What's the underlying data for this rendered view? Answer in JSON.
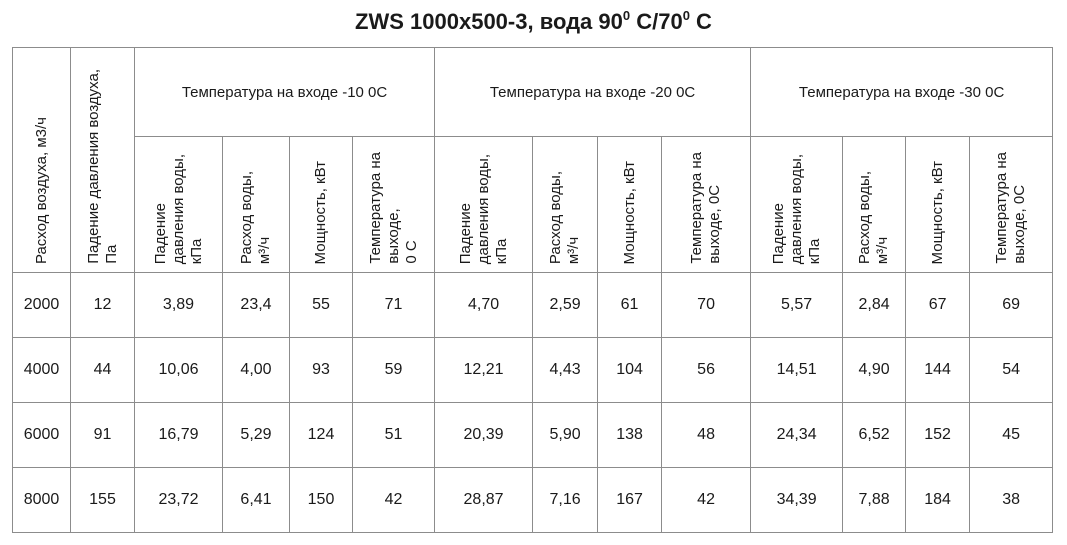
{
  "title": [
    "ZWS 1000x500-3, вода 90",
    "0",
    " C/70",
    "0",
    " C"
  ],
  "header": {
    "first_columns": [
      {
        "lines": [
          "Расход воздуха, м3/ч"
        ]
      },
      {
        "lines": [
          "Падение давления воздуха,",
          "Па"
        ]
      }
    ],
    "groups": [
      {
        "title": "Температура на входе -10 0С",
        "columns": [
          {
            "lines": [
              "Падение",
              "давления воды,",
              "кПа"
            ]
          },
          {
            "lines": [
              "Расход воды,",
              "м³/ч"
            ]
          },
          {
            "lines": [
              "Мощность, кВт"
            ]
          },
          {
            "lines": [
              "Температура на",
              "выходе,",
              "0 С"
            ]
          }
        ]
      },
      {
        "title": "Температура на входе -20 0С",
        "columns": [
          {
            "lines": [
              "Падение",
              "давления воды,",
              "кПа"
            ]
          },
          {
            "lines": [
              "Расход воды,",
              "м³/ч"
            ]
          },
          {
            "lines": [
              "Мощность, кВт"
            ]
          },
          {
            "lines": [
              "Температура на",
              "выходе, 0С"
            ]
          }
        ]
      },
      {
        "title": "Температура на входе -30 0С",
        "columns": [
          {
            "lines": [
              "Падение",
              "давления воды,",
              "кПа"
            ]
          },
          {
            "lines": [
              "Расход воды,",
              "м³/ч"
            ]
          },
          {
            "lines": [
              "Мощность, кВт"
            ]
          },
          {
            "lines": [
              "Температура на",
              "выходе, 0С"
            ]
          }
        ]
      }
    ]
  },
  "table": {
    "rows": [
      [
        "2000",
        "12",
        "3,89",
        "23,4",
        "55",
        "71",
        "4,70",
        "2,59",
        "61",
        "70",
        "5,57",
        "2,84",
        "67",
        "69"
      ],
      [
        "4000",
        "44",
        "10,06",
        "4,00",
        "93",
        "59",
        "12,21",
        "4,43",
        "104",
        "56",
        "14,51",
        "4,90",
        "144",
        "54"
      ],
      [
        "6000",
        "91",
        "16,79",
        "5,29",
        "124",
        "51",
        "20,39",
        "5,90",
        "138",
        "48",
        "24,34",
        "6,52",
        "152",
        "45"
      ],
      [
        "8000",
        "155",
        "23,72",
        "6,41",
        "150",
        "42",
        "28,87",
        "7,16",
        "167",
        "42",
        "34,39",
        "7,88",
        "184",
        "38"
      ]
    ]
  }
}
